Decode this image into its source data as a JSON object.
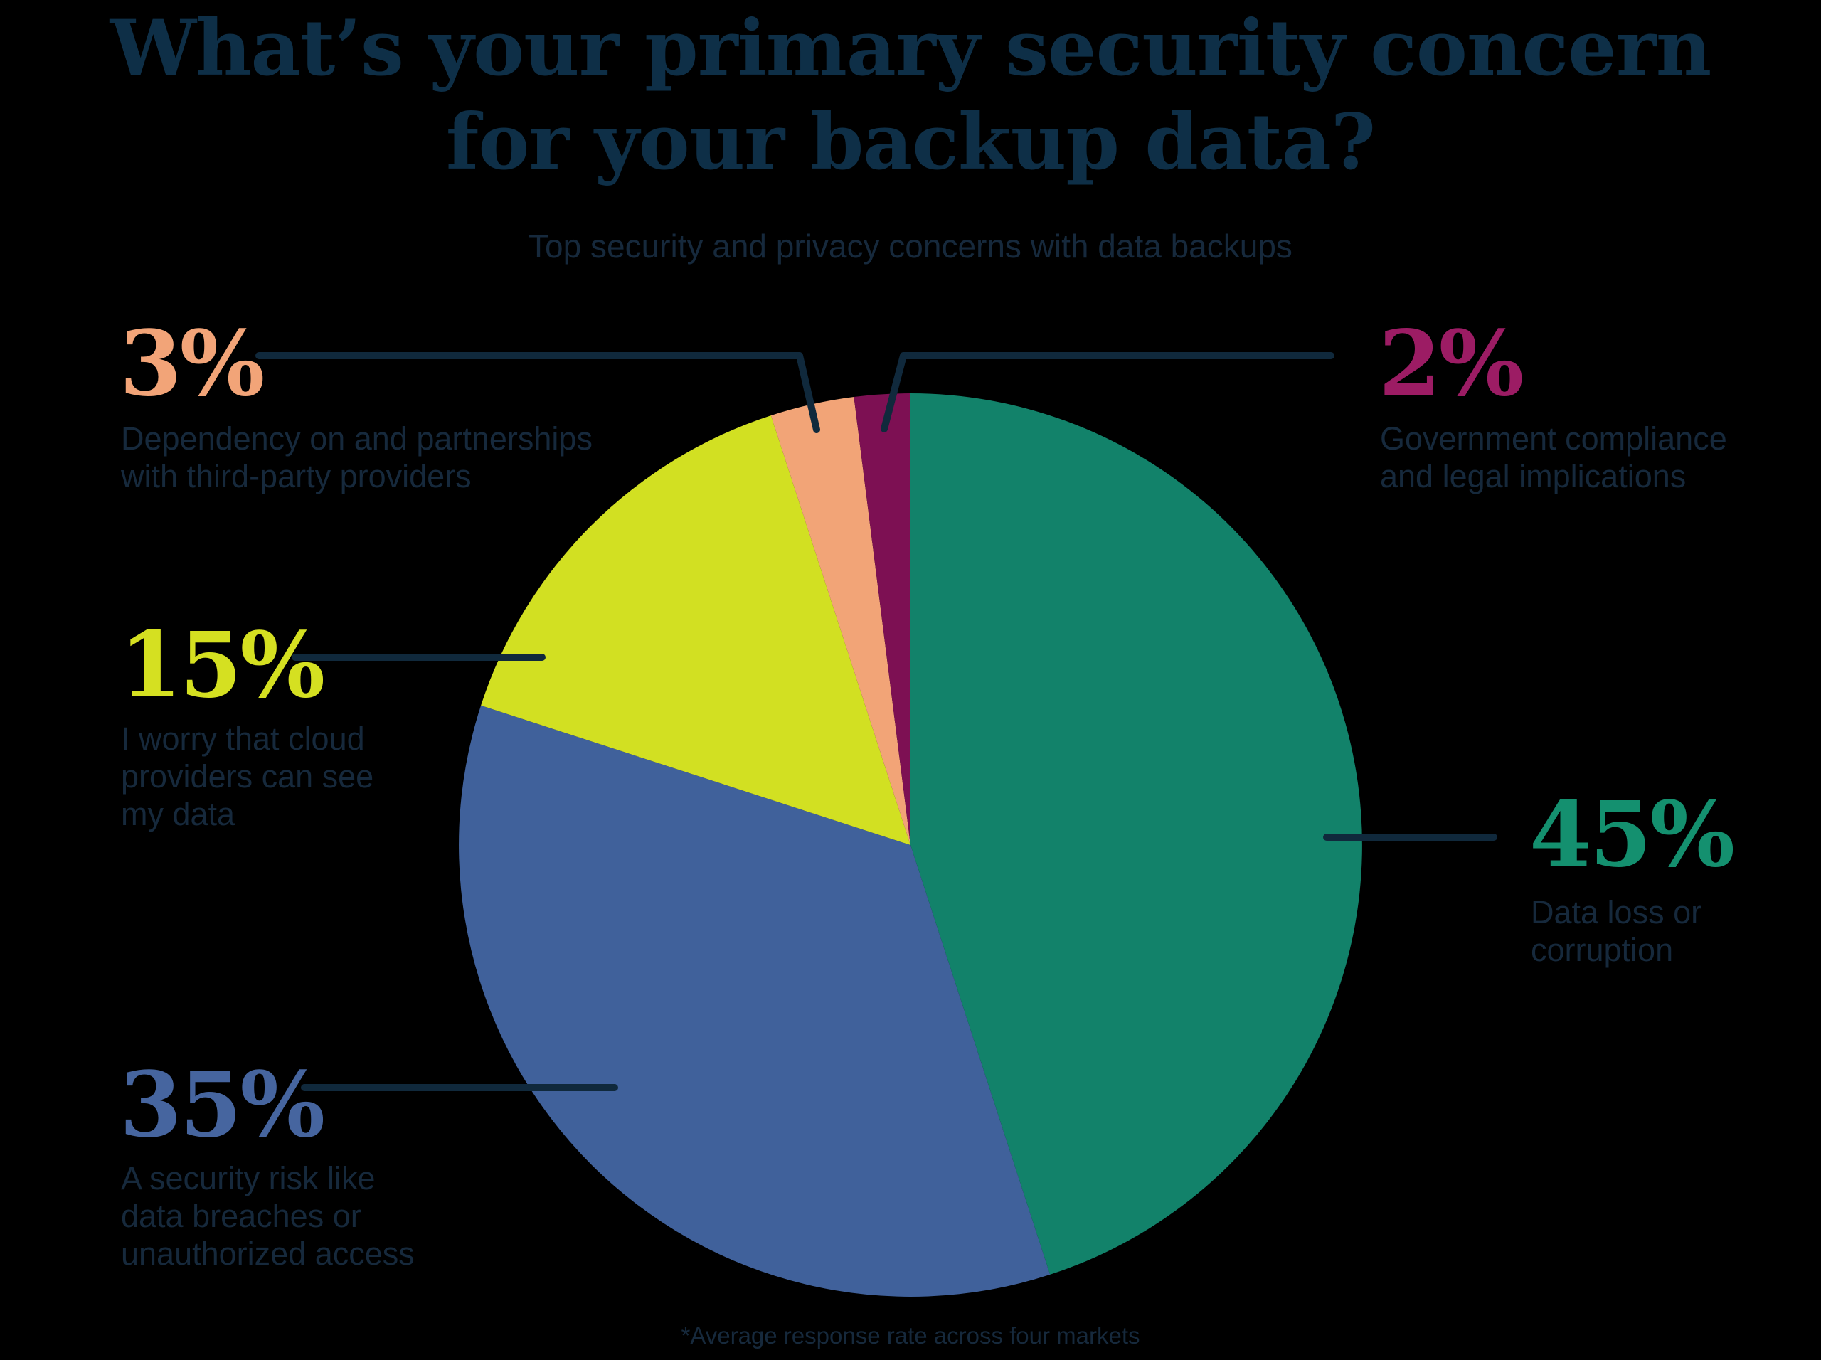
{
  "background_color": "#000000",
  "colors": {
    "navy_title": "#0E2F47",
    "navy_text": "#16293C",
    "navy_line": "#10293C"
  },
  "title": {
    "line1": "What’s your primary security concern",
    "line2": "for your backup data?"
  },
  "subtitle": "Top security and privacy concerns with data backups",
  "footnote": "*Average response rate across four markets",
  "chart_data": {
    "type": "pie",
    "title": "What’s your primary security concern for your backup data?",
    "subtitle": "Top security and privacy concerns with data backups",
    "footnote": "*Average response rate across four markets",
    "unit": "percent",
    "start_angle_deg": 0,
    "direction": "clockwise",
    "legend_position": "callouts",
    "slices": [
      {
        "label": "Data loss or corruption",
        "value": 45,
        "pct_label": "45%",
        "color": "#12826A",
        "number_color": "#14906F",
        "label_lines": [
          "Data loss or",
          "corruption"
        ]
      },
      {
        "label": "A security risk like data breaches or unauthorized access",
        "value": 35,
        "pct_label": "35%",
        "color": "#40619B",
        "number_color": "#46659F",
        "label_lines": [
          "A security risk like",
          "data breaches or",
          "unauthorized access"
        ]
      },
      {
        "label": "I worry that cloud providers can see my data",
        "value": 15,
        "pct_label": "15%",
        "color": "#D2E022",
        "number_color": "#D5E021",
        "label_lines": [
          "I worry that cloud",
          "providers can see",
          "my data"
        ]
      },
      {
        "label": "Dependency on and partnerships with third-party providers",
        "value": 3,
        "pct_label": "3%",
        "color": "#F2A477",
        "number_color": "#F2A478",
        "label_lines": [
          "Dependency on and partnerships",
          "with third-party providers"
        ]
      },
      {
        "label": "Government compliance and legal implications",
        "value": 2,
        "pct_label": "2%",
        "color": "#7D1053",
        "number_color": "#9C1C64",
        "label_lines": [
          "Government compliance",
          "and legal implications"
        ]
      }
    ]
  }
}
